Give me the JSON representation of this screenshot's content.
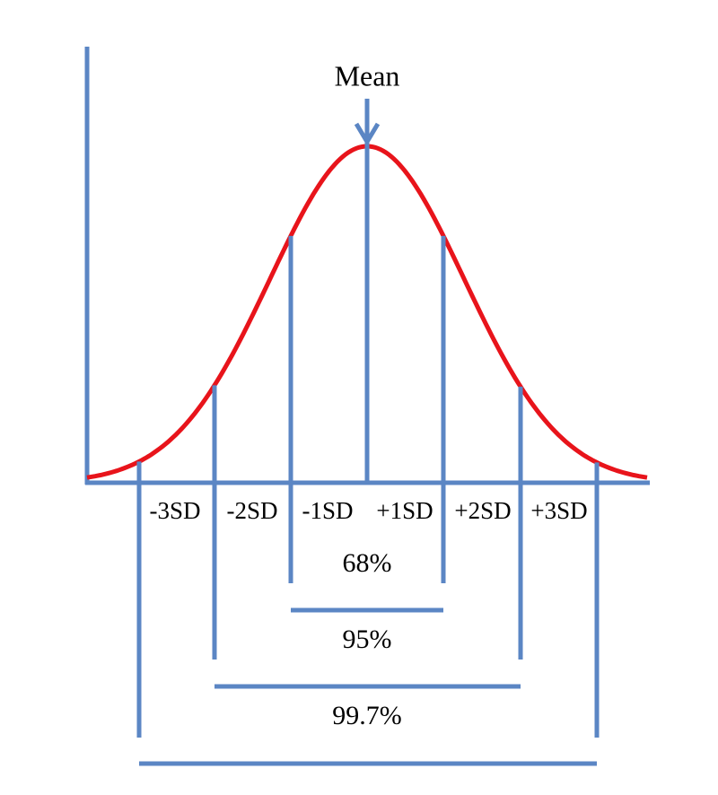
{
  "mean_label": "Mean",
  "sd_labels": [
    "-3SD",
    "-2SD",
    "-1SD",
    "+1SD",
    "+2SD",
    "+3SD"
  ],
  "ranges": [
    "68%",
    "95%",
    "99.7%"
  ]
}
